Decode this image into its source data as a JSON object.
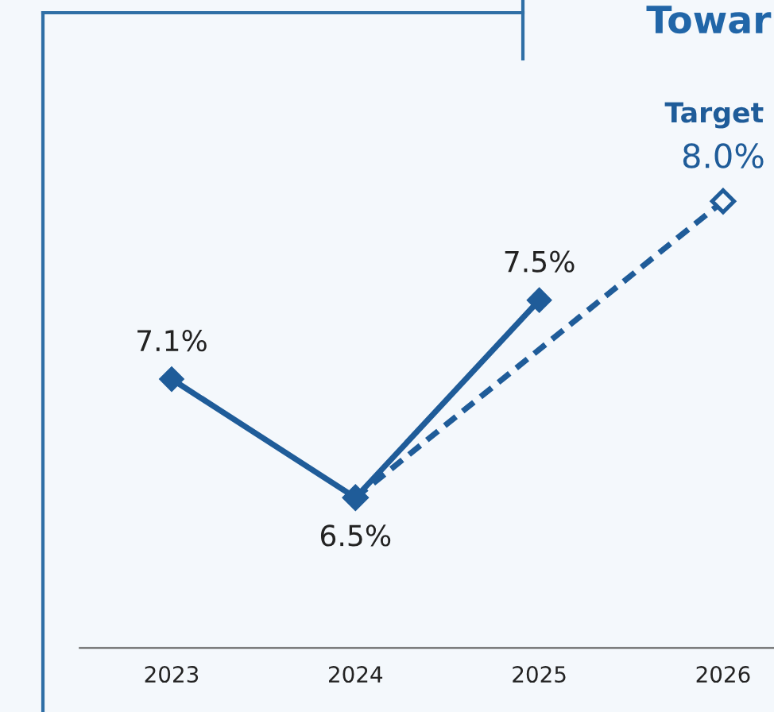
{
  "chart_data": {
    "type": "line",
    "title": "Towar",
    "categories": [
      "2023",
      "2024",
      "2025",
      "2026"
    ],
    "series": [
      {
        "color": "#1f5c99",
        "values": [
          7.1,
          6.5,
          7.5,
          null
        ],
        "value_labels": [
          "7.1%",
          "6.5%",
          "7.5%",
          null
        ],
        "marker": "diamond",
        "line_style": "solid"
      },
      {
        "color": "#1f5c99",
        "values": [
          null,
          6.5,
          null,
          8.0
        ],
        "value_labels": [
          null,
          null,
          null,
          "8.0%"
        ],
        "marker": "diamond",
        "line_style": "dashed"
      }
    ],
    "annotations": [
      {
        "text": "Target",
        "x": "2026",
        "y": 8.0
      }
    ],
    "grid": false
  }
}
